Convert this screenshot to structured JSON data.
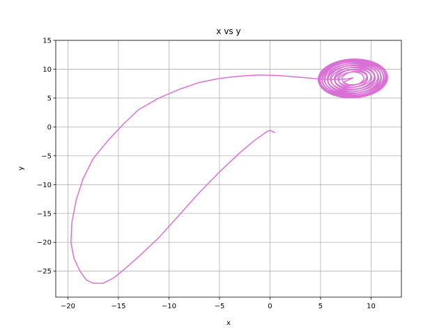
{
  "chart_data": {
    "type": "line",
    "title": "x vs y",
    "xlabel": "x",
    "ylabel": "y",
    "xlim": [
      -21.2,
      13.0
    ],
    "ylim": [
      -29.5,
      15.0
    ],
    "xticks": [
      -20,
      -15,
      -10,
      -5,
      0,
      5,
      10
    ],
    "yticks": [
      -25,
      -20,
      -15,
      -10,
      -5,
      0,
      5,
      10,
      15
    ],
    "xtick_labels": [
      "−20",
      "−15",
      "−10",
      "−5",
      "0",
      "5",
      "10"
    ],
    "ytick_labels": [
      "−25",
      "−20",
      "−15",
      "−10",
      "−5",
      "0",
      "5",
      "10",
      "15"
    ],
    "grid": true,
    "series": [
      {
        "color": "#da70d6",
        "trajectory": [
          [
            0.5,
            -1.0
          ],
          [
            0.0,
            -0.6
          ],
          [
            -0.3,
            -0.8
          ],
          [
            -1.5,
            -2.3
          ],
          [
            -3.0,
            -4.5
          ],
          [
            -5.0,
            -7.8
          ],
          [
            -7.0,
            -11.4
          ],
          [
            -9.0,
            -15.3
          ],
          [
            -11.0,
            -19.2
          ],
          [
            -13.0,
            -22.5
          ],
          [
            -14.5,
            -24.8
          ],
          [
            -15.5,
            -26.2
          ],
          [
            -16.5,
            -27.1
          ],
          [
            -17.5,
            -27.1
          ],
          [
            -18.2,
            -26.5
          ],
          [
            -18.8,
            -25.0
          ],
          [
            -19.4,
            -22.8
          ],
          [
            -19.7,
            -20.0
          ],
          [
            -19.6,
            -16.5
          ],
          [
            -19.2,
            -12.8
          ],
          [
            -18.5,
            -9.0
          ],
          [
            -17.5,
            -5.5
          ],
          [
            -16.0,
            -2.3
          ],
          [
            -14.5,
            0.5
          ],
          [
            -13.0,
            3.0
          ],
          [
            -11.0,
            5.0
          ],
          [
            -9.0,
            6.5
          ],
          [
            -7.0,
            7.7
          ],
          [
            -5.0,
            8.4
          ],
          [
            -3.0,
            8.8
          ],
          [
            -1.0,
            9.0
          ],
          [
            1.0,
            8.9
          ],
          [
            3.0,
            8.6
          ],
          [
            5.0,
            8.3
          ],
          [
            6.5,
            8.2
          ],
          [
            7.5,
            8.3
          ],
          [
            8.2,
            8.5
          ]
        ],
        "attractor": {
          "center": [
            8.2,
            8.4
          ],
          "radius_inner": [
            1.1,
            0.9
          ],
          "radius_outer": [
            3.5,
            3.3
          ],
          "tilt_deg": 35,
          "loops": 22
        }
      }
    ]
  }
}
